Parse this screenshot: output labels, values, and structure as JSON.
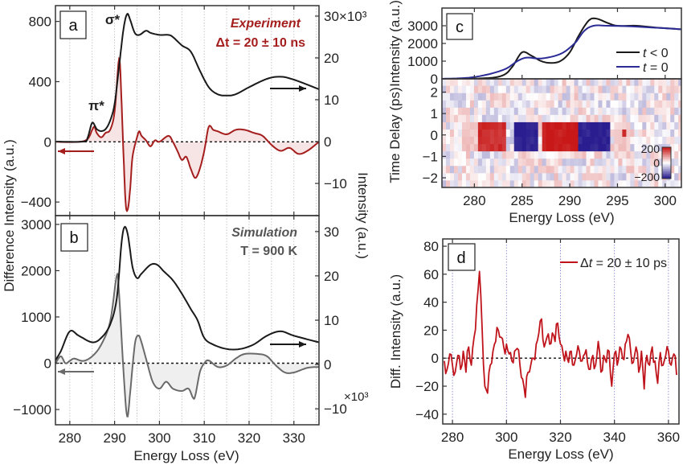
{
  "figure": {
    "y_left_label": "Difference Intensity (a.u.)",
    "y_right_label": "Intensity (a.u.)",
    "x_label": "Energy Loss (eV)",
    "right_multiplier": "×10³"
  },
  "colors": {
    "experiment": "#a51e1e",
    "simulation_diff": "#6a6a6a",
    "intensity": "#1a1a1a",
    "t0": "#2b2b96",
    "panel_d": "#c0141c",
    "heat_pos": "#c81818",
    "heat_neg": "#2a1d8f"
  },
  "chart_data": [
    {
      "panel": "a",
      "type": "line",
      "panel_label": "a",
      "title": "Experiment",
      "subtitle": "Δt = 20 ± 10 ns",
      "peak_labels": {
        "pi": "π*",
        "sigma": "σ*"
      },
      "xlim": [
        276.8,
        335.6
      ],
      "xticks": [
        280,
        290,
        300,
        310,
        320,
        330
      ],
      "grid_x_step": 5,
      "ylim_left": [
        -490,
        905
      ],
      "yticks_left": [
        -400,
        0,
        400,
        800
      ],
      "ylim_right": [
        -17.7,
        32.5
      ],
      "yticks_right": [
        -10,
        0,
        10,
        20,
        30
      ],
      "series": [
        {
          "name": "intensity",
          "axis": "right",
          "x": [
            276.8,
            283,
            284,
            285,
            286,
            287,
            288,
            289,
            290,
            291,
            292,
            292.8,
            293.5,
            294.5,
            295.5,
            297,
            298,
            300,
            302,
            303,
            305,
            307,
            309,
            311,
            313,
            315,
            317,
            320,
            324,
            327,
            330,
            335.6
          ],
          "y": [
            0,
            0,
            1,
            4.5,
            3,
            2.5,
            3,
            5,
            9,
            18,
            27,
            30.5,
            29,
            26,
            25.5,
            26.5,
            26,
            25.5,
            25.5,
            25,
            23,
            21.5,
            17,
            13,
            11.3,
            11,
            11.3,
            13,
            15,
            15.5,
            14.8,
            12.5
          ]
        },
        {
          "name": "difference",
          "axis": "left",
          "x": [
            276.8,
            282,
            284,
            285,
            285.5,
            286,
            287,
            288,
            289,
            290,
            291,
            291.5,
            292,
            292.5,
            293,
            293.5,
            294,
            295,
            295.5,
            296,
            297,
            298,
            299,
            300,
            302,
            303,
            304,
            305,
            306,
            307,
            308,
            309,
            310,
            311,
            312,
            313,
            315,
            317,
            319,
            321,
            323,
            325,
            327,
            329,
            331,
            333,
            335.6
          ],
          "y": [
            0,
            0,
            20,
            80,
            100,
            60,
            30,
            60,
            80,
            200,
            550,
            300,
            -100,
            -420,
            -440,
            -300,
            -100,
            30,
            70,
            40,
            10,
            -30,
            10,
            0,
            40,
            0,
            -60,
            -120,
            -100,
            -180,
            -240,
            -180,
            -60,
            100,
            80,
            70,
            50,
            80,
            80,
            60,
            40,
            -20,
            -60,
            -40,
            -80,
            -60,
            0
          ]
        }
      ]
    },
    {
      "panel": "b",
      "type": "line",
      "panel_label": "b",
      "title": "Simulation",
      "subtitle": "T = 900 K",
      "xlim": [
        276.8,
        335.6
      ],
      "xticks": [
        280,
        290,
        300,
        310,
        320,
        330
      ],
      "grid_x_step": 5,
      "ylim_left": [
        -1330,
        3190
      ],
      "yticks_left": [
        -1000,
        0,
        1000,
        2000,
        3000
      ],
      "ylim_right": [
        -13.6,
        33.6
      ],
      "yticks_right": [
        -10,
        0,
        10,
        20,
        30
      ],
      "series": [
        {
          "name": "intensity",
          "axis": "right",
          "x": [
            276.8,
            278,
            280,
            282,
            285,
            287,
            289,
            290.5,
            291.5,
            292.2,
            293,
            294,
            295,
            296,
            298,
            299.5,
            301,
            303,
            305,
            307,
            308.5,
            310,
            312,
            315,
            318,
            321,
            324,
            327,
            330,
            335.6
          ],
          "y": [
            1,
            3,
            7.5,
            6.5,
            5,
            6,
            9,
            15,
            27,
            31,
            29,
            22,
            19.5,
            20.5,
            22.5,
            22.5,
            21,
            19,
            16,
            12.5,
            10,
            6,
            4.5,
            3.5,
            3.5,
            4.5,
            6.5,
            7.5,
            6.5,
            5
          ]
        },
        {
          "name": "difference",
          "axis": "left",
          "x": [
            276.8,
            278,
            279,
            280,
            281,
            283,
            285,
            287,
            289,
            290.5,
            291,
            292,
            292.8,
            293.5,
            294.5,
            295.3,
            296,
            297,
            298.5,
            300,
            301.5,
            303,
            305,
            306.5,
            307.5,
            308,
            309,
            310,
            311,
            313,
            315,
            317,
            319,
            322,
            324,
            326,
            328,
            330,
            333,
            335.6
          ],
          "y": [
            0,
            150,
            0,
            50,
            100,
            50,
            150,
            400,
            900,
            1900,
            1500,
            -200,
            -1150,
            -600,
            400,
            600,
            450,
            100,
            -400,
            -550,
            -400,
            -550,
            -600,
            -550,
            -750,
            -700,
            -200,
            0,
            60,
            -80,
            -50,
            100,
            200,
            200,
            150,
            -50,
            -200,
            -200,
            -100,
            -80
          ]
        }
      ]
    },
    {
      "panel": "c",
      "type": "line+heatmap",
      "panel_label": "c",
      "xlim": [
        276.6,
        301.7
      ],
      "xticks": [
        280,
        285,
        290,
        295,
        300
      ],
      "top": {
        "ylabel": "Intensity (a.u.)",
        "ylim": [
          0,
          4000
        ],
        "yticks": [
          0,
          1000,
          2000,
          3000
        ],
        "series": [
          {
            "name": "t < 0",
            "legend_var": "t",
            "legend_rest": " < 0",
            "x": [
              276.6,
              281,
              283,
              284,
              285,
              286,
              287,
              288,
              289,
              290,
              291,
              292,
              292.8,
              294,
              295,
              297,
              299,
              301.7
            ],
            "y": [
              0,
              30,
              200,
              700,
              1500,
              1300,
              1000,
              900,
              1000,
              1500,
              2500,
              3300,
              3400,
              3150,
              3000,
              3000,
              2900,
              2800
            ]
          },
          {
            "name": "t = 0",
            "legend_var": "t",
            "legend_rest": " = 0",
            "x": [
              276.6,
              280,
              283,
              284.5,
              285.5,
              287,
              289,
              290.5,
              291.5,
              292.5,
              294,
              297,
              301.7
            ],
            "y": [
              0,
              100,
              500,
              1000,
              1200,
              1150,
              1400,
              2000,
              2700,
              3000,
              3000,
              2950,
              2800
            ]
          }
        ]
      },
      "heatmap": {
        "ylabel": "Time Delay (ps)",
        "ylim": [
          -2.45,
          2.62
        ],
        "yticks": [
          -2,
          -1,
          0,
          1,
          2
        ],
        "clim": [
          -200,
          200
        ],
        "colorbar_ticks": [
          200,
          0,
          -200
        ],
        "noise_amplitude": 60,
        "features": [
          {
            "e": [
              278.5,
              280.5
            ],
            "t": [
              -0.7,
              0.75
            ],
            "value": 50
          },
          {
            "e": [
              280.5,
              283.3
            ],
            "t": [
              -0.7,
              0.75
            ],
            "value": 180
          },
          {
            "e": [
              284.0,
              286.8
            ],
            "t": [
              -0.7,
              0.75
            ],
            "value": -200
          },
          {
            "e": [
              287.0,
              290.7
            ],
            "t": [
              -0.7,
              0.75
            ],
            "value": 200
          },
          {
            "e": [
              291.0,
              294.3
            ],
            "t": [
              -0.7,
              0.75
            ],
            "value": -200
          },
          {
            "e": [
              294.5,
              296.3
            ],
            "t": [
              -0.7,
              0.75
            ],
            "value": 45
          },
          {
            "e": [
              295.6,
              296.1
            ],
            "t": [
              -0.15,
              0.15
            ],
            "value": 200
          }
        ]
      },
      "xlabel": "Energy Loss (eV)"
    },
    {
      "panel": "d",
      "type": "line",
      "panel_label": "d",
      "ylabel": "Diff. Intensity (a.u.)",
      "xlabel": "Energy Loss (eV)",
      "legend": {
        "prefix": "Δ",
        "var": "t",
        "rest": " = 20 ± 10 ps"
      },
      "xlim": [
        276.4,
        363.9
      ],
      "xticks": [
        280,
        300,
        320,
        340,
        360
      ],
      "ylim": [
        -47,
        85.2
      ],
      "yticks": [
        -40,
        -20,
        0,
        20,
        40,
        60,
        80
      ],
      "series": [
        {
          "name": "Δt = 20 ± 10 ps",
          "x_start": 277,
          "x_step": 1,
          "y": [
            -2,
            -8,
            3,
            -5,
            -10,
            2,
            -8,
            5,
            -10,
            8,
            -5,
            15,
            38,
            62,
            20,
            -20,
            -25,
            -5,
            5,
            12,
            20,
            15,
            8,
            10,
            3,
            -2,
            5,
            7,
            -5,
            -15,
            -28,
            -10,
            -5,
            0,
            10,
            18,
            28,
            8,
            15,
            10,
            18,
            12,
            25,
            10,
            3,
            5,
            -3,
            5,
            -5,
            3,
            5,
            -2,
            3,
            -3,
            -8,
            2,
            -5,
            12,
            -10,
            2,
            -3,
            5,
            -20,
            3,
            -5,
            8,
            0,
            10,
            17,
            5,
            -3,
            8,
            -10,
            5,
            -22,
            2,
            -5,
            8,
            -2,
            -18,
            4,
            -5,
            2,
            5,
            -5,
            3,
            -12
          ]
        }
      ]
    }
  ]
}
